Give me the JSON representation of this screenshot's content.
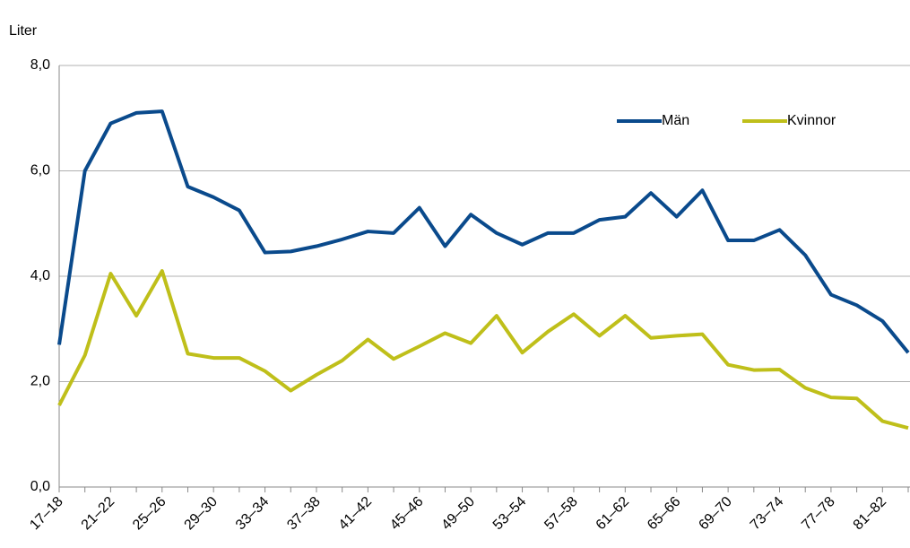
{
  "chart_data": {
    "type": "line",
    "y_label": "Liter",
    "categories": [
      "17–18",
      null,
      "21–22",
      null,
      "25–26",
      null,
      "29–30",
      null,
      "33–34",
      null,
      "37–38",
      null,
      "41–42",
      null,
      "45–46",
      null,
      "49–50",
      null,
      "53–54",
      null,
      "57–58",
      null,
      "61–62",
      null,
      "65–66",
      null,
      "69–70",
      null,
      "73–74",
      null,
      "77–78",
      null,
      "81–82",
      null
    ],
    "series": [
      {
        "name": "Män",
        "color": "#0a4a8c",
        "values": [
          2.7,
          6.0,
          6.9,
          7.1,
          7.13,
          5.7,
          5.5,
          5.25,
          4.45,
          4.47,
          4.57,
          4.7,
          4.85,
          4.82,
          5.3,
          4.57,
          5.17,
          4.82,
          4.6,
          4.82,
          4.82,
          5.07,
          5.13,
          5.58,
          5.13,
          5.63,
          4.68,
          4.68,
          4.88,
          4.4,
          3.65,
          3.45,
          3.15,
          2.55
        ]
      },
      {
        "name": "Kvinnor",
        "color": "#bfbf1a",
        "values": [
          1.55,
          2.5,
          4.05,
          3.25,
          4.1,
          2.53,
          2.45,
          2.45,
          2.2,
          1.83,
          2.13,
          2.4,
          2.8,
          2.43,
          2.67,
          2.92,
          2.73,
          3.25,
          2.55,
          2.95,
          3.28,
          2.87,
          3.25,
          2.83,
          2.87,
          2.9,
          2.32,
          2.22,
          2.23,
          1.88,
          1.7,
          1.68,
          1.25,
          1.12
        ]
      }
    ],
    "ylim": [
      0,
      8
    ],
    "yticks": [
      {
        "value": 0,
        "label": "0,0"
      },
      {
        "value": 2,
        "label": "2,0"
      },
      {
        "value": 4,
        "label": "4,0"
      },
      {
        "value": 6,
        "label": "6,0"
      },
      {
        "value": 8,
        "label": "8,0"
      }
    ],
    "grid": true,
    "legend": "top-right"
  }
}
